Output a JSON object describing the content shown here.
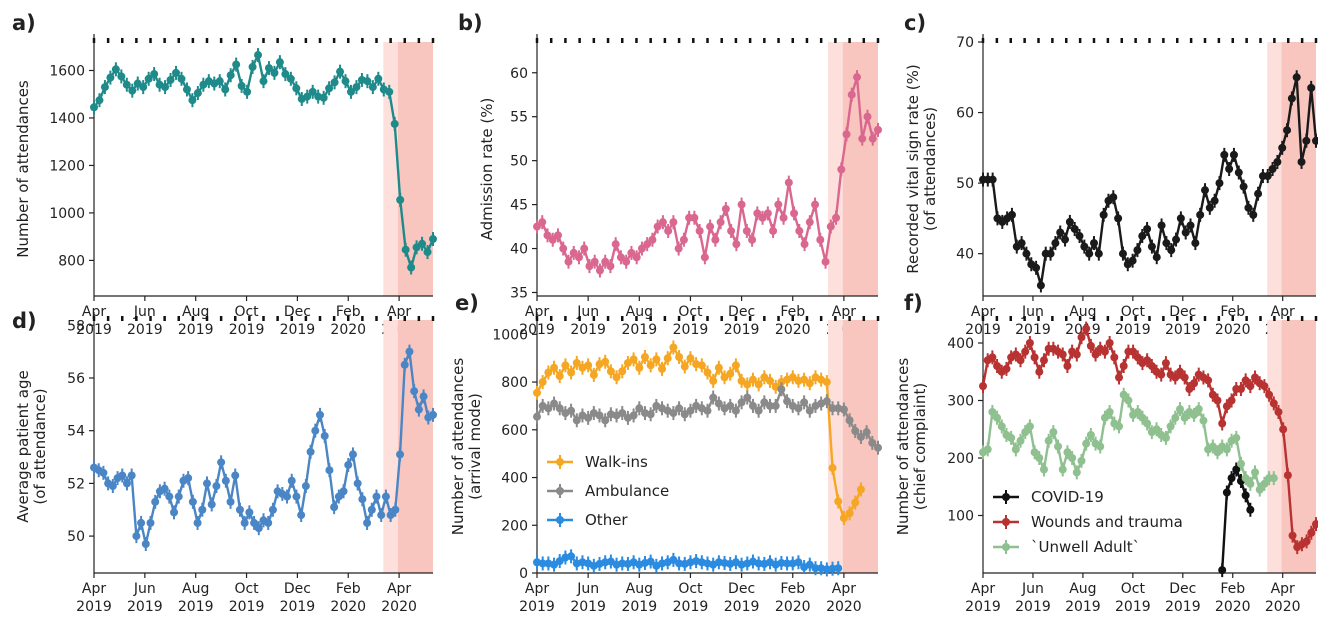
{
  "x_ticks": {
    "months": [
      "Apr",
      "Jun",
      "Aug",
      "Oct",
      "Dec",
      "Feb",
      "Apr"
    ],
    "years": [
      "2019",
      "2019",
      "2019",
      "2019",
      "2019",
      "2020",
      "2020"
    ]
  },
  "colors": {
    "shade_light": "#fde0dc",
    "shade_dark": "#f8c6bf"
  },
  "chart_data": [
    {
      "panel": "a)",
      "type": "line",
      "ylabel": "Number of attendances",
      "ylim": [
        650,
        1720
      ],
      "yticks": [
        800,
        1000,
        1200,
        1400,
        1600
      ],
      "xlim": [
        0,
        58
      ],
      "shade": [
        49.5,
        52,
        58
      ],
      "series": [
        {
          "color": "#1f8a8a",
          "values": [
            1445,
            1475,
            1530,
            1570,
            1605,
            1575,
            1540,
            1515,
            1545,
            1530,
            1565,
            1585,
            1540,
            1530,
            1560,
            1590,
            1565,
            1520,
            1475,
            1505,
            1540,
            1555,
            1545,
            1555,
            1520,
            1580,
            1625,
            1535,
            1510,
            1615,
            1665,
            1555,
            1610,
            1590,
            1635,
            1585,
            1565,
            1525,
            1480,
            1490,
            1510,
            1490,
            1485,
            1525,
            1550,
            1595,
            1555,
            1510,
            1530,
            1560,
            1555,
            1530,
            1565,
            1520,
            1510,
            1375,
            1055,
            845,
            770,
            855,
            870,
            835,
            890
          ]
        }
      ]
    },
    {
      "panel": "b)",
      "type": "line",
      "ylabel": "Admission rate (%)",
      "ylim": [
        34.6,
        63.5
      ],
      "yticks": [
        35,
        40,
        45,
        50,
        55,
        60
      ],
      "xlim": [
        0,
        58
      ],
      "shade": [
        49.5,
        52,
        58
      ],
      "series": [
        {
          "color": "#d9678f",
          "values": [
            42.5,
            43.0,
            41.5,
            41.0,
            41.5,
            40.0,
            38.5,
            39.5,
            39.0,
            40.0,
            38.0,
            38.5,
            37.5,
            38.5,
            38.0,
            40.5,
            39.0,
            38.5,
            39.5,
            39.0,
            40.0,
            40.5,
            41.0,
            42.5,
            43.0,
            42.0,
            43.0,
            40.0,
            41.0,
            43.5,
            43.5,
            42.0,
            39.0,
            42.5,
            41.0,
            43.0,
            44.5,
            42.0,
            40.5,
            45.0,
            42.0,
            41.0,
            44.0,
            43.5,
            44.0,
            42.0,
            45.0,
            43.5,
            47.5,
            44.0,
            42.0,
            40.5,
            43.0,
            45.0,
            41.0,
            38.5,
            42.5,
            43.5,
            49.0,
            53.0,
            57.5,
            59.5,
            52.5,
            55.0,
            52.5,
            53.5
          ]
        }
      ]
    },
    {
      "panel": "c)",
      "type": "line",
      "ylabel": "Recorded vital sign rate (%)",
      "ylabel2": "(of attendances)",
      "ylim": [
        34,
        70
      ],
      "yticks": [
        40,
        50,
        60,
        70
      ],
      "xlim": [
        0,
        58
      ],
      "shade": [
        49.5,
        52,
        58
      ],
      "series": [
        {
          "color": "#1a1a1a",
          "values": [
            50.5,
            50.5,
            50.5,
            45.0,
            44.5,
            45.0,
            45.5,
            41.0,
            41.5,
            40.0,
            38.5,
            38.0,
            35.5,
            40.0,
            40.0,
            41.5,
            43.0,
            42.0,
            44.5,
            43.5,
            42.5,
            41.0,
            40.0,
            41.5,
            40.0,
            45.5,
            47.5,
            48.0,
            45.0,
            40.0,
            38.5,
            39.0,
            40.5,
            42.5,
            43.5,
            41.0,
            39.5,
            44.0,
            41.5,
            40.5,
            42.0,
            45.0,
            43.0,
            44.0,
            41.5,
            45.5,
            49.0,
            46.5,
            47.5,
            50.0,
            54.0,
            52.0,
            54.0,
            51.5,
            49.5,
            46.5,
            45.5,
            48.5,
            51.0,
            51.0,
            52.0,
            53.0,
            55.0,
            57.5,
            62.0,
            65.0,
            53.0,
            56.0,
            63.5,
            56.0
          ]
        }
      ]
    },
    {
      "panel": "d)",
      "type": "line",
      "ylabel": "Average patient age",
      "ylabel2": "(of attendance)",
      "ylim": [
        48.6,
        58.2
      ],
      "yticks": [
        50,
        52,
        54,
        56,
        58
      ],
      "xlim": [
        0,
        58
      ],
      "shade": [
        49.5,
        52,
        58
      ],
      "series": [
        {
          "color": "#4a86c5",
          "values": [
            52.6,
            52.5,
            52.4,
            52.0,
            51.9,
            52.2,
            52.3,
            52.0,
            52.3,
            50.0,
            50.5,
            49.7,
            50.5,
            51.3,
            51.7,
            51.8,
            51.5,
            50.9,
            51.5,
            52.1,
            52.2,
            51.3,
            50.5,
            51.0,
            52.0,
            51.2,
            51.9,
            52.8,
            52.1,
            51.3,
            52.3,
            51.0,
            50.5,
            50.9,
            50.5,
            50.3,
            50.6,
            50.5,
            51.0,
            51.7,
            51.6,
            51.5,
            52.1,
            51.5,
            50.8,
            51.9,
            53.2,
            54.0,
            54.6,
            53.8,
            52.5,
            51.1,
            51.5,
            51.7,
            52.7,
            53.1,
            52.0,
            51.4,
            50.5,
            51.0,
            51.5,
            50.8,
            51.5,
            50.8,
            51.0,
            53.1,
            56.5,
            57.0,
            55.5,
            54.8,
            55.3,
            54.5,
            54.6
          ]
        }
      ]
    },
    {
      "panel": "e)",
      "type": "line",
      "ylabel": "Number of attendances",
      "ylabel2": "(arrival mode)",
      "ylim": [
        0,
        1060
      ],
      "yticks": [
        0,
        200,
        400,
        600,
        800,
        1000
      ],
      "xlim": [
        0,
        58
      ],
      "shade": [
        49.5,
        52,
        58
      ],
      "series": [
        {
          "name": "Walk-ins",
          "color": "#f5a623",
          "values": [
            755,
            800,
            840,
            860,
            825,
            870,
            840,
            880,
            860,
            870,
            830,
            875,
            885,
            845,
            820,
            845,
            880,
            895,
            860,
            905,
            870,
            895,
            855,
            900,
            945,
            905,
            865,
            900,
            875,
            870,
            840,
            805,
            860,
            820,
            835,
            870,
            805,
            790,
            810,
            790,
            820,
            805,
            780,
            800,
            810,
            820,
            805,
            810,
            795,
            820,
            810,
            800,
            440,
            300,
            230,
            250,
            295,
            350
          ]
        },
        {
          "name": "Ambulance",
          "color": "#8a8a8a",
          "values": [
            655,
            700,
            690,
            710,
            690,
            670,
            680,
            640,
            660,
            650,
            670,
            660,
            640,
            665,
            660,
            670,
            650,
            660,
            690,
            670,
            665,
            700,
            690,
            680,
            670,
            690,
            665,
            680,
            700,
            690,
            680,
            735,
            710,
            690,
            700,
            680,
            715,
            735,
            700,
            680,
            715,
            700,
            700,
            770,
            720,
            700,
            690,
            715,
            680,
            700,
            710,
            720,
            690,
            690,
            685,
            640,
            595,
            570,
            590,
            545,
            525
          ]
        },
        {
          "name": "Other",
          "color": "#2b8be0",
          "values": [
            45,
            40,
            40,
            35,
            50,
            65,
            70,
            40,
            45,
            40,
            30,
            38,
            45,
            48,
            35,
            40,
            38,
            45,
            35,
            42,
            48,
            30,
            40,
            45,
            55,
            40,
            38,
            45,
            50,
            45,
            40,
            35,
            45,
            42,
            38,
            45,
            35,
            40,
            48,
            40,
            38,
            45,
            35,
            42,
            40,
            40,
            45,
            25,
            35,
            20,
            20,
            15,
            18,
            20
          ]
        }
      ]
    },
    {
      "panel": "f)",
      "type": "line",
      "ylabel": "Number of attendances",
      "ylabel2": "(chief complaint)",
      "ylim": [
        0,
        440
      ],
      "yticks": [
        100,
        200,
        300,
        400
      ],
      "xlim": [
        0,
        58
      ],
      "shade": [
        49.5,
        52,
        58
      ],
      "series": [
        {
          "name": "COVID-19",
          "color": "#111111",
          "x_start": 51,
          "values": [
            5,
            140,
            165,
            180,
            160,
            135,
            110
          ]
        },
        {
          "name": "Wounds and trauma",
          "color": "#b83232",
          "values": [
            325,
            370,
            375,
            360,
            350,
            355,
            375,
            380,
            370,
            385,
            400,
            375,
            350,
            370,
            390,
            390,
            385,
            380,
            360,
            385,
            380,
            410,
            425,
            395,
            380,
            390,
            385,
            400,
            375,
            340,
            360,
            385,
            385,
            375,
            365,
            370,
            360,
            350,
            345,
            365,
            345,
            340,
            350,
            340,
            320,
            330,
            345,
            340,
            335,
            310,
            300,
            260,
            290,
            300,
            320,
            320,
            335,
            325,
            340,
            330,
            325,
            310,
            295,
            280,
            250,
            170,
            65,
            45,
            50,
            55,
            70,
            85
          ]
        },
        {
          "name": "`Unwell Adult`",
          "color": "#8fc08f",
          "values": [
            210,
            215,
            280,
            270,
            255,
            240,
            235,
            215,
            230,
            245,
            255,
            210,
            200,
            180,
            230,
            245,
            220,
            180,
            210,
            200,
            175,
            195,
            225,
            240,
            225,
            220,
            270,
            280,
            260,
            255,
            310,
            300,
            275,
            280,
            270,
            260,
            245,
            250,
            240,
            235,
            255,
            270,
            285,
            270,
            280,
            275,
            285,
            265,
            215,
            220,
            210,
            220,
            215,
            230,
            235,
            190,
            165,
            155,
            175,
            145,
            155,
            165,
            165
          ]
        }
      ]
    }
  ]
}
